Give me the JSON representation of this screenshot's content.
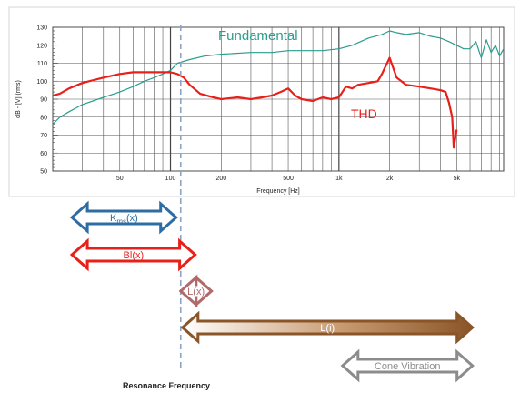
{
  "chart_data": {
    "type": "line",
    "title": "",
    "xlabel": "Frequency [Hz]",
    "ylabel": "dB - [V] (rms)",
    "x_scale": "log",
    "xlim": [
      20,
      9500
    ],
    "ylim": [
      50,
      130
    ],
    "grid": true,
    "x_tick_labels": [
      {
        "value": 50,
        "label": "50"
      },
      {
        "value": 100,
        "label": "100"
      },
      {
        "value": 200,
        "label": "200"
      },
      {
        "value": 500,
        "label": "500"
      },
      {
        "value": 1000,
        "label": "1k"
      },
      {
        "value": 2000,
        "label": "2k"
      },
      {
        "value": 5000,
        "label": "5k"
      }
    ],
    "y_ticks": [
      50,
      60,
      70,
      80,
      90,
      100,
      110,
      120,
      130
    ],
    "series": [
      {
        "name": "Fundamental",
        "color": "#2a9d8f",
        "x": [
          20,
          22,
          25,
          30,
          40,
          50,
          60,
          70,
          80,
          90,
          100,
          110,
          130,
          160,
          200,
          300,
          400,
          500,
          600,
          700,
          800,
          1000,
          1200,
          1500,
          1800,
          2000,
          2200,
          2500,
          3000,
          3500,
          4000,
          4500,
          5000,
          5500,
          6000,
          6500,
          7000,
          7500,
          8000,
          8500,
          9000,
          9500
        ],
        "y": [
          76,
          80,
          83,
          87,
          91,
          94,
          97,
          100,
          102,
          104,
          106,
          110,
          112,
          114,
          115,
          116,
          116,
          117,
          117,
          117,
          117,
          118,
          120,
          124,
          126,
          128,
          127,
          126,
          127,
          125,
          124,
          122,
          120,
          118,
          118,
          122,
          113,
          123,
          116,
          120,
          114,
          118
        ]
      },
      {
        "name": "THD",
        "color": "#e8201a",
        "x": [
          20,
          22,
          25,
          30,
          40,
          50,
          60,
          70,
          80,
          90,
          100,
          110,
          120,
          130,
          150,
          180,
          200,
          250,
          300,
          350,
          400,
          450,
          500,
          550,
          600,
          700,
          800,
          900,
          1000,
          1100,
          1200,
          1300,
          1500,
          1700,
          1800,
          2000,
          2200,
          2500,
          3000,
          3500,
          4000,
          4300,
          4500,
          4700,
          4800,
          5000
        ],
        "y": [
          92,
          93,
          96,
          99,
          102,
          104,
          105,
          105,
          105,
          105,
          105,
          104,
          102,
          98,
          93,
          91,
          90,
          91,
          90,
          91,
          92,
          94,
          96,
          92,
          90,
          89,
          91,
          90,
          91,
          97,
          96,
          98,
          99,
          100,
          104,
          113,
          102,
          98,
          97,
          96,
          95,
          94,
          88,
          80,
          63,
          73
        ]
      }
    ],
    "annotations": [
      {
        "text": "Fundamental",
        "color": "#2a9d8f"
      },
      {
        "text": "THD",
        "color": "#e8201a"
      }
    ]
  },
  "bands": [
    {
      "id": "kms",
      "label_base": "K",
      "label_sub": "ms",
      "label_suffix": "(x)",
      "color": "#2e6da4",
      "start_hz": 26,
      "end_hz": 108,
      "fill": "none"
    },
    {
      "id": "bl",
      "label": "Bl(x)",
      "color": "#e8201a",
      "start_hz": 26,
      "end_hz": 140,
      "fill": "none"
    },
    {
      "id": "lx",
      "label": "L(x)",
      "color": "#b06a6a",
      "start_hz": 115,
      "end_hz": 175,
      "fill": "none"
    },
    {
      "id": "li",
      "label": "L(i)",
      "color": "#8a5528",
      "start_hz": 118,
      "end_hz": 6200,
      "fill": "gradient"
    },
    {
      "id": "cone",
      "label": "Cone Vibration",
      "color": "#8c8c8c",
      "start_hz": 1050,
      "end_hz": 6200,
      "fill": "none"
    }
  ],
  "resonance": {
    "label": "Resonance Frequency",
    "hz": 115,
    "color": "#8fa3c0"
  }
}
